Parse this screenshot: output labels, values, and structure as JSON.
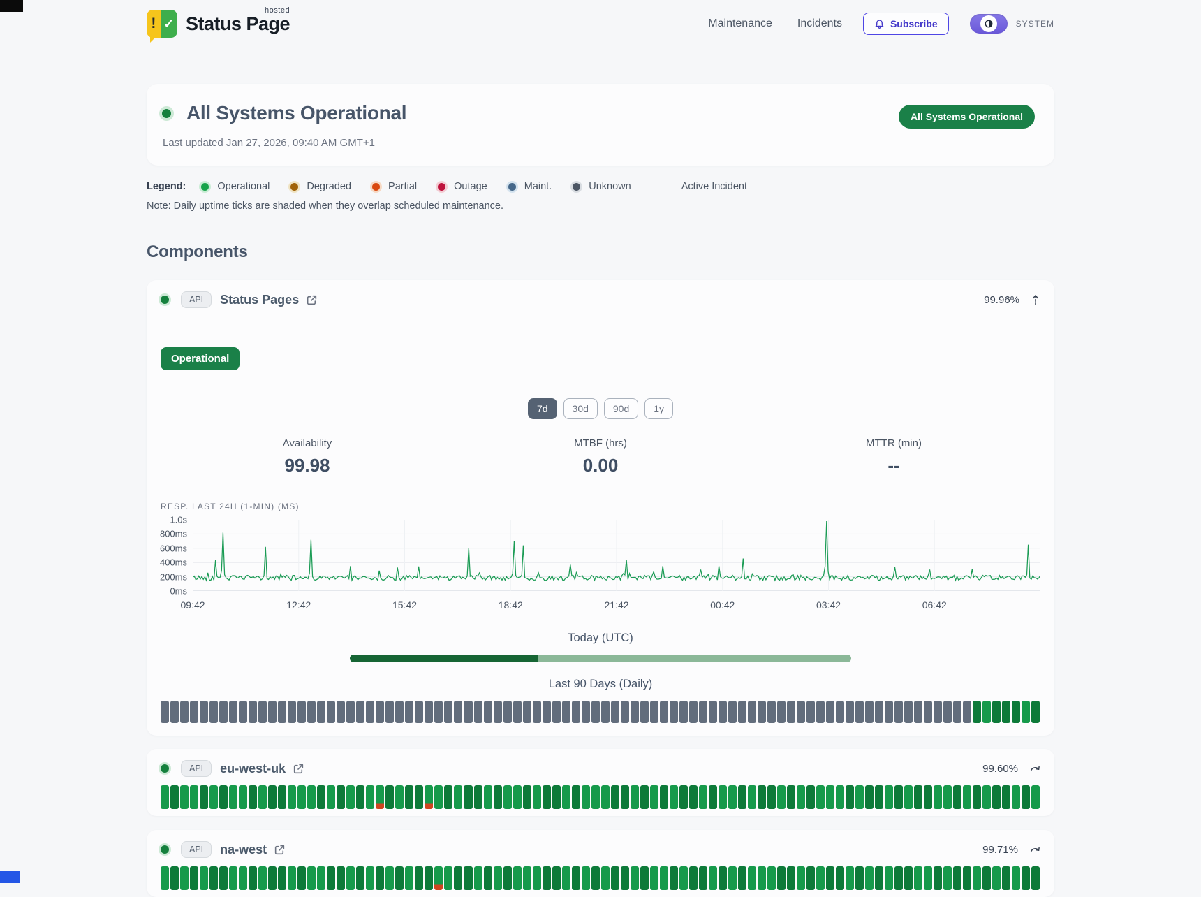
{
  "header": {
    "logo": {
      "word": "Status Page",
      "superscript": "hosted"
    },
    "nav": [
      "Maintenance",
      "Incidents"
    ],
    "subscribe_label": "Subscribe",
    "theme_toggle_label": "SYSTEM"
  },
  "hero": {
    "title": "All Systems Operational",
    "last_updated": "Last updated Jan 27, 2026, 09:40 AM GMT+1",
    "badge": "All Systems Operational"
  },
  "legend": {
    "label": "Legend:",
    "items": [
      {
        "label": "Operational",
        "color": "#16a34a",
        "halo": "#c8ecd4"
      },
      {
        "label": "Degraded",
        "color": "#a16207",
        "halo": "#efe3c2"
      },
      {
        "label": "Partial",
        "color": "#d9480f",
        "halo": "#f6d9c4"
      },
      {
        "label": "Outage",
        "color": "#be123c",
        "halo": "#f3cdd4"
      },
      {
        "label": "Maint.",
        "color": "#46688a",
        "halo": "#d3e2ee"
      },
      {
        "label": "Unknown",
        "color": "#4b5563",
        "halo": "#d9dde2"
      }
    ],
    "active_incident_label": "Active Incident",
    "note": "Note: Daily uptime ticks are shaded when they overlap scheduled maintenance."
  },
  "components_heading": "Components",
  "component1": {
    "type_badge": "API",
    "name": "Status Pages",
    "uptime": "99.96%",
    "status_badge": "Operational",
    "ranges": [
      "7d",
      "30d",
      "90d",
      "1y"
    ],
    "active_range": "7d",
    "stats": [
      {
        "label": "Availability",
        "value": "99.98"
      },
      {
        "label": "MTBF (hrs)",
        "value": "0.00"
      },
      {
        "label": "MTTR (min)",
        "value": "--"
      }
    ],
    "today_label": "Today (UTC)",
    "today_progress_pct": 37.5,
    "last90_label": "Last 90 Days (Daily)",
    "ticks": "uuuuuuuuuuuuuuuuuuuuuuuuuuuuuuuuuuuuuuuuuuuuuuuuuuuuuuuuuuuuuuuuuuuuuuuuuuuuuuuuuuuGgGGGgG"
  },
  "component2": {
    "type_badge": "API",
    "name": "eu-west-uk",
    "uptime": "99.60%",
    "ticks": "gGggGgGggGgGGgggGgGgGgpGgGGpgGgGGgGggGgGGgGgggGGgGgGgGGgGggGgGGgGgGgggGgGGgGgGGggGgGgGGgGg"
  },
  "component3": {
    "type_badge": "API",
    "name": "na-west",
    "uptime": "99.71%",
    "ticks": "gGgGgGGggGgGGgGggGGgGgGgGgGGpgGGgGgGgggGGgGgGgGGgGggGgGGgGgGgggGGgGgGGgGgGgGGggGgGGgGgGgGG"
  },
  "tick_legend": {
    "u": "unknown",
    "g": "operational",
    "G": "operational-dark",
    "p": "partial-outage"
  },
  "chart_data": {
    "type": "line",
    "title": "RESP. LAST 24H (1-MIN) (MS)",
    "description": "Response time in ms, 1-minute resolution, last 24 hours starting 09:42",
    "line_color": "#1a9b54",
    "ylim": [
      0,
      1000
    ],
    "y_tick_labels": [
      "1.0s",
      "800ms",
      "600ms",
      "400ms",
      "200ms",
      "0ms"
    ],
    "y_tick_values": [
      1000,
      800,
      600,
      400,
      200,
      0
    ],
    "x_tick_labels": [
      "09:42",
      "12:42",
      "15:42",
      "18:42",
      "21:42",
      "00:42",
      "03:42",
      "06:42"
    ],
    "baseline_range_ms": [
      140,
      230
    ],
    "spikes_fraction_ms": [
      [
        0.027,
        430
      ],
      [
        0.036,
        820
      ],
      [
        0.085,
        620
      ],
      [
        0.14,
        720
      ],
      [
        0.186,
        350
      ],
      [
        0.242,
        330
      ],
      [
        0.266,
        345
      ],
      [
        0.326,
        600
      ],
      [
        0.38,
        700
      ],
      [
        0.39,
        640
      ],
      [
        0.445,
        370
      ],
      [
        0.511,
        435
      ],
      [
        0.554,
        350
      ],
      [
        0.6,
        300
      ],
      [
        0.621,
        350
      ],
      [
        0.649,
        455
      ],
      [
        0.747,
        980
      ],
      [
        0.829,
        335
      ],
      [
        0.87,
        300
      ],
      [
        0.92,
        305
      ],
      [
        0.985,
        650
      ]
    ]
  }
}
